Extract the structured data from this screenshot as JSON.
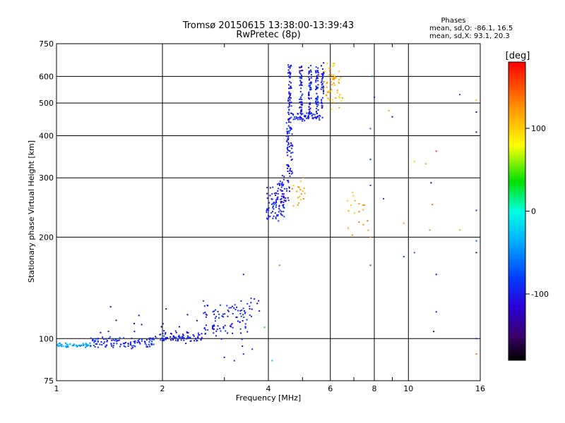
{
  "chart_data": {
    "type": "scatter",
    "title": "Tromsø 20150615 13:38:00-13:39:43",
    "subtitle": "RwPretec (8p)",
    "xlabel": "Frequency [MHz]",
    "ylabel": "Stationary phase Virtual Height [km]",
    "x_scale": "log",
    "y_scale": "log",
    "xlim": [
      1,
      16
    ],
    "ylim": [
      75,
      750
    ],
    "x_ticks": [
      {
        "v": 1,
        "label": "1"
      },
      {
        "v": 2,
        "label": "2"
      },
      {
        "v": 4,
        "label": "4"
      },
      {
        "v": 6,
        "label": "6"
      },
      {
        "v": 8,
        "label": "8"
      },
      {
        "v": 10,
        "label": "10"
      },
      {
        "v": 16,
        "label": "16"
      }
    ],
    "x_minor_ticks": [
      3,
      5,
      7,
      9
    ],
    "y_ticks": [
      {
        "v": 75,
        "label": "75"
      },
      {
        "v": 100,
        "label": "100"
      },
      {
        "v": 200,
        "label": "200"
      },
      {
        "v": 300,
        "label": "300"
      },
      {
        "v": 400,
        "label": "400"
      },
      {
        "v": 500,
        "label": "500"
      },
      {
        "v": 600,
        "label": "600"
      },
      {
        "v": 750,
        "label": "750"
      }
    ],
    "grid": true,
    "phase_stats": {
      "heading": "Phases",
      "line_o": "mean, sd,O: -86.1, 16.5",
      "line_x": "mean, sd,X:  93.1, 20.3"
    },
    "colorbar": {
      "label": "[deg]",
      "range": [
        -180,
        180
      ],
      "ticks": [
        {
          "v": 100,
          "label": "100"
        },
        {
          "v": 0,
          "label": "0"
        },
        {
          "v": -100,
          "label": "-100"
        }
      ]
    },
    "segments": [
      {
        "x0": 1.0,
        "x1": 1.25,
        "y0": 95,
        "y1": 96,
        "n": 60,
        "phase": -40,
        "jitter": 0.012
      },
      {
        "x0": 1.25,
        "x1": 1.9,
        "y0": 95,
        "y1": 100,
        "n": 110,
        "phase": -95,
        "jitter": 0.02
      },
      {
        "x0": 1.9,
        "x1": 2.6,
        "y0": 100,
        "y1": 103,
        "n": 80,
        "phase": -100,
        "jitter": 0.03
      },
      {
        "x0": 2.6,
        "x1": 3.5,
        "y0": 104,
        "y1": 125,
        "n": 90,
        "phase": -100,
        "jitter": 0.05
      },
      {
        "x0": 3.5,
        "x1": 3.8,
        "y0": 120,
        "y1": 130,
        "n": 10,
        "phase": -100,
        "jitter": 0.08
      },
      {
        "x0": 3.95,
        "x1": 4.45,
        "y0": 230,
        "y1": 280,
        "n": 90,
        "phase": -100,
        "jitter": 0.04
      },
      {
        "x0": 4.3,
        "x1": 4.6,
        "y0": 260,
        "y1": 300,
        "n": 30,
        "phase": -105,
        "jitter": 0.05
      },
      {
        "x0": 4.5,
        "x1": 4.7,
        "y0": 300,
        "y1": 430,
        "n": 60,
        "phase": -100,
        "jitter": 0.04
      },
      {
        "x0": 4.55,
        "x1": 4.65,
        "y0": 430,
        "y1": 650,
        "n": 70,
        "phase": -100,
        "jitter": 0.03
      },
      {
        "x0": 4.65,
        "x1": 5.7,
        "y0": 450,
        "y1": 460,
        "n": 60,
        "phase": -95,
        "jitter": 0.02
      },
      {
        "x0": 4.9,
        "x1": 5.0,
        "y0": 460,
        "y1": 640,
        "n": 50,
        "phase": -100,
        "jitter": 0.03
      },
      {
        "x0": 5.2,
        "x1": 5.3,
        "y0": 460,
        "y1": 640,
        "n": 50,
        "phase": -100,
        "jitter": 0.03
      },
      {
        "x0": 5.45,
        "x1": 5.55,
        "y0": 460,
        "y1": 640,
        "n": 50,
        "phase": -100,
        "jitter": 0.03
      },
      {
        "x0": 5.65,
        "x1": 5.75,
        "y0": 480,
        "y1": 640,
        "n": 40,
        "phase": -100,
        "jitter": 0.03
      },
      {
        "x0": 5.75,
        "x1": 6.5,
        "y0": 500,
        "y1": 640,
        "n": 60,
        "phase": 110,
        "jitter": 0.05
      },
      {
        "x0": 4.65,
        "x1": 5.1,
        "y0": 250,
        "y1": 290,
        "n": 20,
        "phase": 115,
        "jitter": 0.04
      },
      {
        "x0": 6.7,
        "x1": 7.8,
        "y0": 205,
        "y1": 260,
        "n": 18,
        "phase": 120,
        "jitter": 0.05
      },
      {
        "x0": 1.3,
        "x1": 3.6,
        "y0": 100,
        "y1": 120,
        "n": 30,
        "phase": -130,
        "jitter": 0.08
      }
    ],
    "sparse_points": [
      {
        "x": 3.0,
        "y": 88,
        "phase": -110
      },
      {
        "x": 3.2,
        "y": 86,
        "phase": -100
      },
      {
        "x": 3.4,
        "y": 90,
        "phase": -100
      },
      {
        "x": 3.6,
        "y": 93,
        "phase": -95
      },
      {
        "x": 4.1,
        "y": 86,
        "phase": -30
      },
      {
        "x": 3.9,
        "y": 108,
        "phase": 30
      },
      {
        "x": 3.4,
        "y": 155,
        "phase": -100
      },
      {
        "x": 4.3,
        "y": 165,
        "phase": 140
      },
      {
        "x": 7.8,
        "y": 285,
        "phase": -90
      },
      {
        "x": 7.8,
        "y": 200,
        "phase": 130
      },
      {
        "x": 7.8,
        "y": 165,
        "phase": -60
      },
      {
        "x": 7.8,
        "y": 340,
        "phase": -80
      },
      {
        "x": 7.8,
        "y": 420,
        "phase": -60
      },
      {
        "x": 8.0,
        "y": 520,
        "phase": -90
      },
      {
        "x": 7.9,
        "y": 600,
        "phase": -60
      },
      {
        "x": 8.5,
        "y": 260,
        "phase": -90
      },
      {
        "x": 8.8,
        "y": 475,
        "phase": 120
      },
      {
        "x": 9.0,
        "y": 455,
        "phase": -130
      },
      {
        "x": 9.7,
        "y": 220,
        "phase": 120
      },
      {
        "x": 9.7,
        "y": 175,
        "phase": -90
      },
      {
        "x": 10.4,
        "y": 335,
        "phase": 100
      },
      {
        "x": 10.4,
        "y": 180,
        "phase": -60
      },
      {
        "x": 11.2,
        "y": 330,
        "phase": 120
      },
      {
        "x": 11.5,
        "y": 210,
        "phase": 130
      },
      {
        "x": 11.6,
        "y": 290,
        "phase": -120
      },
      {
        "x": 11.7,
        "y": 250,
        "phase": 140
      },
      {
        "x": 11.8,
        "y": 105,
        "phase": -140
      },
      {
        "x": 12.0,
        "y": 360,
        "phase": 160
      },
      {
        "x": 12.0,
        "y": 120,
        "phase": -110
      },
      {
        "x": 12.0,
        "y": 155,
        "phase": -110
      },
      {
        "x": 14.0,
        "y": 530,
        "phase": -80
      },
      {
        "x": 14.0,
        "y": 210,
        "phase": 110
      },
      {
        "x": 15.6,
        "y": 470,
        "phase": -120
      },
      {
        "x": 15.6,
        "y": 410,
        "phase": -110
      },
      {
        "x": 15.6,
        "y": 195,
        "phase": -70
      },
      {
        "x": 15.6,
        "y": 240,
        "phase": -80
      },
      {
        "x": 15.6,
        "y": 180,
        "phase": -140
      },
      {
        "x": 15.6,
        "y": 100,
        "phase": -90
      },
      {
        "x": 15.6,
        "y": 90,
        "phase": 140
      },
      {
        "x": 15.6,
        "y": 510,
        "phase": 110
      }
    ]
  }
}
